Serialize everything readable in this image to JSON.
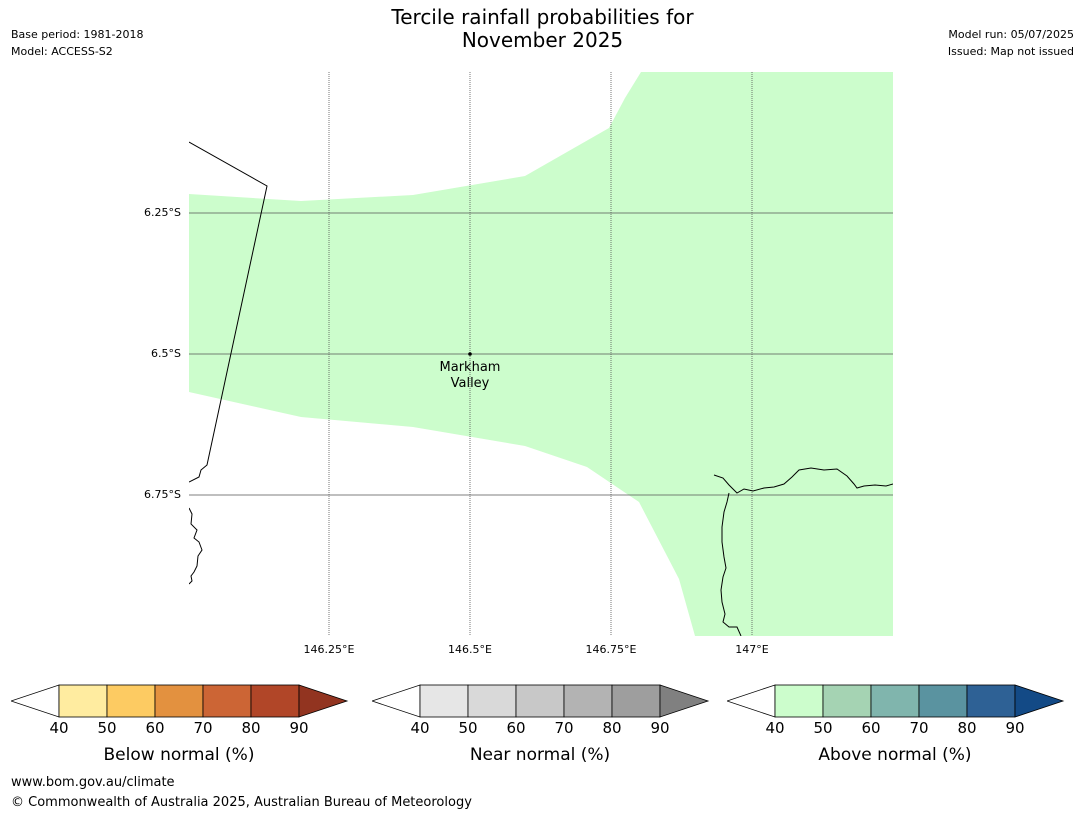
{
  "header": {
    "title_line1": "Tercile rainfall probabilities for",
    "title_line2": "November 2025",
    "base_period": "Base period: 1981-2018",
    "model": "Model: ACCESS-S2",
    "model_run": "Model run: 05/07/2025",
    "issued": "Issued: Map not issued"
  },
  "map": {
    "lat_labels": [
      "6.25°S",
      "6.5°S",
      "6.75°S"
    ],
    "lon_labels": [
      "146.25°E",
      "146.5°E",
      "146.75°E",
      "147°E"
    ],
    "place": {
      "line1": "Markham",
      "line2": "Valley"
    },
    "colors": {
      "above_40_50": "#ccfdcc",
      "grid": "#555555",
      "coast": "#000000"
    }
  },
  "legends": [
    {
      "label": "Below normal (%)",
      "ticks": [
        "40",
        "50",
        "60",
        "70",
        "80",
        "90"
      ],
      "colors": [
        "#ffeca0",
        "#fdcb62",
        "#e3913f",
        "#cc6535",
        "#b14628",
        "#923420"
      ]
    },
    {
      "label": "Near normal (%)",
      "ticks": [
        "40",
        "50",
        "60",
        "70",
        "80",
        "90"
      ],
      "colors": [
        "#e6e6e6",
        "#d9d9d9",
        "#c8c8c8",
        "#b3b3b3",
        "#9e9e9e",
        "#808080"
      ]
    },
    {
      "label": "Above normal (%)",
      "ticks": [
        "40",
        "50",
        "60",
        "70",
        "80",
        "90"
      ],
      "colors": [
        "#ccfdcc",
        "#a5d3b3",
        "#80b5ad",
        "#5a93a0",
        "#2e6195",
        "#134a86"
      ]
    }
  ],
  "footer": {
    "url": "www.bom.gov.au/climate",
    "copyright": "© Commonwealth of Australia 2025, Australian Bureau of Meteorology"
  }
}
